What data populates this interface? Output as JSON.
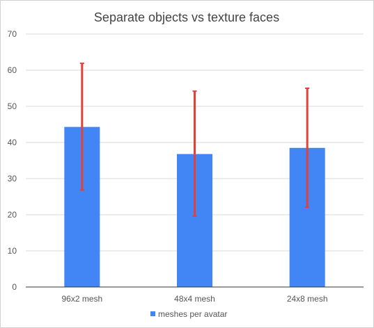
{
  "chart_data": {
    "type": "bar",
    "title": "Separate objects vs texture faces",
    "categories": [
      "96x2 mesh",
      "48x4 mesh",
      "24x8 mesh"
    ],
    "series": [
      {
        "name": "meshes per avatar",
        "values": [
          44.3,
          36.8,
          38.5
        ],
        "error_low": [
          26.8,
          19.6,
          22.1
        ],
        "error_high": [
          61.9,
          54.2,
          55.0
        ]
      }
    ],
    "xlabel": "",
    "ylabel": "",
    "ylim": [
      0,
      70
    ],
    "yticks": [
      "0",
      "10",
      "20",
      "30",
      "40",
      "50",
      "60",
      "70"
    ],
    "grid": true,
    "legend_position": "bottom",
    "colors": {
      "bar": "#4285f4",
      "error": "#e0413a",
      "grid": "#d9d9d9",
      "axis": "#333333"
    }
  }
}
